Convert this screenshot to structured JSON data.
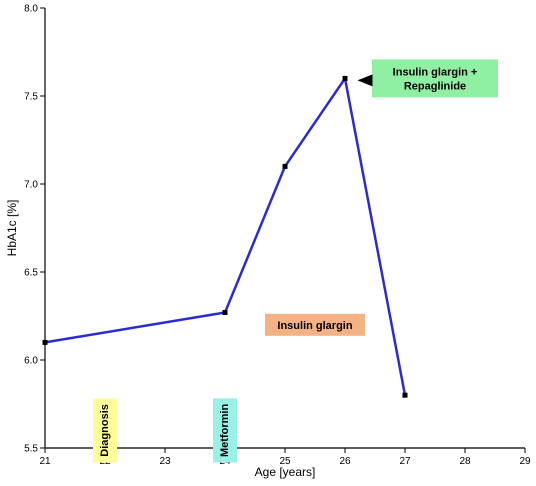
{
  "chart_data": {
    "type": "line",
    "xlabel": "Age [years]",
    "ylabel": "HbA1c [%]",
    "xlim": [
      21,
      29
    ],
    "ylim": [
      5.5,
      8.0
    ],
    "xticks": [
      "21",
      "22",
      "23",
      "24",
      "25",
      "26",
      "27",
      "28",
      "29"
    ],
    "yticks": [
      "5.5",
      "6.0",
      "6.5",
      "7.0",
      "7.5",
      "8.0"
    ],
    "series": [
      {
        "color": "#2b2bd6",
        "x": [
          21,
          24,
          25,
          26,
          27
        ],
        "y": [
          6.1,
          6.27,
          7.1,
          7.6,
          5.8
        ]
      }
    ],
    "annotations": [
      {
        "text": "Diagnosis",
        "x": 22,
        "y": 5.6,
        "orientation": "vertical",
        "color": "#ffff99"
      },
      {
        "text": "Metformin",
        "x": 24,
        "y": 5.6,
        "orientation": "vertical",
        "color": "#99f0e6"
      },
      {
        "text": "Insulin glargin",
        "x": 25.5,
        "y": 6.2,
        "orientation": "horizontal",
        "color": "#f4b183"
      },
      {
        "text_lines": [
          "Insulin glargin +",
          "Repaglinide"
        ],
        "x": 27.5,
        "y": 7.6,
        "orientation": "horizontal",
        "color": "#8ff0a4",
        "arrow_to": [
          26,
          7.6
        ]
      }
    ]
  }
}
